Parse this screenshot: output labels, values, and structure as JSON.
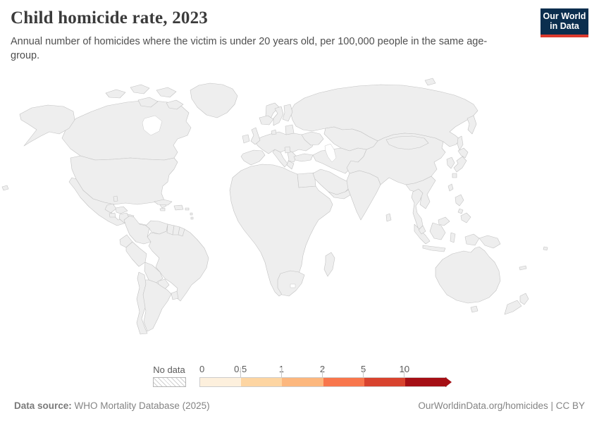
{
  "header": {
    "title": "Child homicide rate, 2023",
    "subtitle": "Annual number of homicides where the victim is under 20 years old, per 100,000 people in the same age-group.",
    "logo": {
      "line1": "Our World",
      "line2": "in Data",
      "bg_color": "#0b2e4e",
      "accent_color": "#dc3a2e"
    }
  },
  "footer": {
    "data_source_label": "Data source:",
    "data_source_value": " WHO Mortality Database (2025)",
    "link_text": "OurWorldinData.org/homicides | CC BY"
  },
  "chart_data": {
    "type": "choropleth_map",
    "title": "Child homicide rate, 2023",
    "unit": "annual homicides per 100,000 people under 20 years old",
    "projection": "world",
    "legend": {
      "no_data_label": "No data",
      "no_data_pattern": "diagonal-hatch",
      "tick_labels": [
        "0",
        "0.5",
        "1",
        "2",
        "5",
        "10"
      ],
      "bin_labels": [
        "0-0.5",
        "0.5-1",
        "1-2",
        "2-5",
        "5-10",
        "10+"
      ],
      "bin_colors": [
        "#fdf0dd",
        "#fdd5a2",
        "#fcb77e",
        "#f8764c",
        "#d8432e",
        "#a50f15"
      ],
      "border_color": "#c2c2c2"
    },
    "countries": [
      {
        "name": "Canada",
        "bin": "0-0.5"
      },
      {
        "name": "United States",
        "bin": "2-5"
      },
      {
        "name": "Greenland",
        "bin": "no-data"
      },
      {
        "name": "Mexico",
        "bin": "5-10"
      },
      {
        "name": "Belize",
        "bin": "10+"
      },
      {
        "name": "Guatemala",
        "bin": "5-10"
      },
      {
        "name": "El Salvador",
        "bin": "10+"
      },
      {
        "name": "Honduras",
        "bin": "0.5-1"
      },
      {
        "name": "Nicaragua",
        "bin": "0.5-1"
      },
      {
        "name": "Costa Rica",
        "bin": "2-5"
      },
      {
        "name": "Panama",
        "bin": "5-10"
      },
      {
        "name": "Cuba",
        "bin": "0.5-1"
      },
      {
        "name": "Jamaica",
        "bin": "10+"
      },
      {
        "name": "Dominican Republic",
        "bin": "5-10"
      },
      {
        "name": "Puerto Rico",
        "bin": "5-10"
      },
      {
        "name": "Lesser Antilles",
        "bin": "5-10"
      },
      {
        "name": "Colombia",
        "bin": "5-10"
      },
      {
        "name": "Venezuela",
        "bin": "no-data"
      },
      {
        "name": "Guyana",
        "bin": "no-data"
      },
      {
        "name": "Suriname",
        "bin": "no-data"
      },
      {
        "name": "French Guiana",
        "bin": "no-data"
      },
      {
        "name": "Ecuador",
        "bin": "5-10"
      },
      {
        "name": "Peru",
        "bin": "0-0.5"
      },
      {
        "name": "Brazil",
        "bin": "10+"
      },
      {
        "name": "Bolivia",
        "bin": "no-data"
      },
      {
        "name": "Paraguay",
        "bin": "1-2"
      },
      {
        "name": "Uruguay",
        "bin": "2-5"
      },
      {
        "name": "Argentina",
        "bin": "1-2"
      },
      {
        "name": "Chile",
        "bin": "1-2"
      },
      {
        "name": "Iceland",
        "bin": "no-data"
      },
      {
        "name": "Ireland",
        "bin": "0-0.5"
      },
      {
        "name": "United Kingdom",
        "bin": "0-0.5"
      },
      {
        "name": "Norway",
        "bin": "0-0.5"
      },
      {
        "name": "Sweden",
        "bin": "0.5-1"
      },
      {
        "name": "Finland",
        "bin": "0.5-1"
      },
      {
        "name": "Baltic states",
        "bin": "0.5-1"
      },
      {
        "name": "Denmark",
        "bin": "0-0.5"
      },
      {
        "name": "Central Europe",
        "bin": "0-0.5"
      },
      {
        "name": "Spain and Portugal",
        "bin": "0-0.5"
      },
      {
        "name": "Italy",
        "bin": "0-0.5"
      },
      {
        "name": "Balkans",
        "bin": "0-0.5"
      },
      {
        "name": "Serbia",
        "bin": "1-2"
      },
      {
        "name": "Ukraine",
        "bin": "0.5-1"
      },
      {
        "name": "Turkey",
        "bin": "0-0.5"
      },
      {
        "name": "Russia",
        "bin": "0.5-1"
      },
      {
        "name": "Kazakhstan",
        "bin": "0-0.5"
      },
      {
        "name": "Middle East and South-Central Asia",
        "bin": "no-data"
      },
      {
        "name": "Saudi Arabia",
        "bin": "0-0.5"
      },
      {
        "name": "Yemen and Oman",
        "bin": "no-data"
      },
      {
        "name": "Egypt",
        "bin": "0-0.5"
      },
      {
        "name": "Most of Africa",
        "bin": "no-data"
      },
      {
        "name": "South Africa",
        "bin": "2-5"
      },
      {
        "name": "Madagascar",
        "bin": "no-data"
      },
      {
        "name": "India",
        "bin": "no-data"
      },
      {
        "name": "Sri Lanka",
        "bin": "no-data"
      },
      {
        "name": "China",
        "bin": "no-data"
      },
      {
        "name": "Mongolia",
        "bin": "no-data"
      },
      {
        "name": "South Korea",
        "bin": "1-2"
      },
      {
        "name": "Japan",
        "bin": "0-0.5"
      },
      {
        "name": "Taiwan",
        "bin": "no-data"
      },
      {
        "name": "Indochina",
        "bin": "no-data"
      },
      {
        "name": "Thailand",
        "bin": "1-2"
      },
      {
        "name": "Malaysia",
        "bin": "0-0.5"
      },
      {
        "name": "Indonesia",
        "bin": "no-data"
      },
      {
        "name": "Philippines",
        "bin": "2-5"
      },
      {
        "name": "Papua New Guinea",
        "bin": "no-data"
      },
      {
        "name": "Pacific islands",
        "bin": "no-data"
      },
      {
        "name": "Arctic islands",
        "bin": "no-data"
      },
      {
        "name": "Australia",
        "bin": "0-0.5"
      },
      {
        "name": "New Zealand",
        "bin": "1-2"
      }
    ]
  }
}
